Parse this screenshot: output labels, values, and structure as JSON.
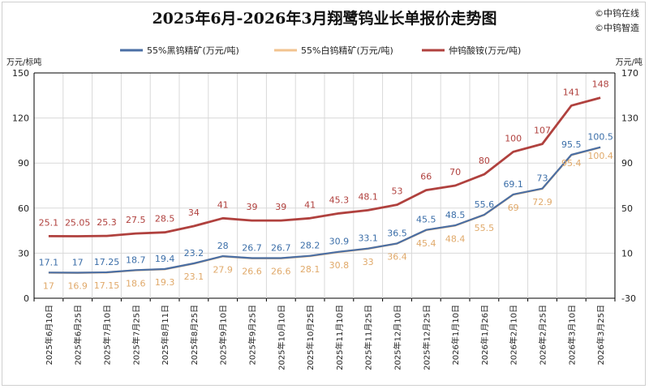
{
  "brand": {
    "line1": "©中钨在线",
    "line2": "©中钨智造"
  },
  "colors": {
    "black_tungsten": "#4a6fa5",
    "white_tungsten": "#f2c38f",
    "apt": "#b0413e",
    "gridline": "#d9d9d9",
    "black_label": "#3b6ea8",
    "white_label": "#e0a96a",
    "apt_label": "#b0413e"
  },
  "chart_data": {
    "type": "line",
    "title": "2025年6月-2026年3月翔鹭钨业长单报价走势图",
    "y_unit_left": "万元/标吨",
    "y_unit_right": "万元/吨",
    "ylim_left": [
      0,
      150
    ],
    "ylim_right": [
      -30,
      170
    ],
    "yticks_left": [
      0,
      30,
      60,
      90,
      120,
      150
    ],
    "yticks_right": [
      -30,
      10,
      50,
      90,
      130,
      170
    ],
    "grid": true,
    "legend_position": "top",
    "categories": [
      "2025年6月10日",
      "2025年6月25日",
      "2025年7月10日",
      "2025年7月25日",
      "2025年8月11日",
      "2025年8月25日",
      "2025年9月10日",
      "2025年9月25日",
      "2025年10月10日",
      "2025年10月25日",
      "2025年11月10日",
      "2025年11月25日",
      "2025年12月10日",
      "2025年12月25日",
      "2026年1月10日",
      "2026年1月26日",
      "2026年2月10日",
      "2026年2月25日",
      "2026年3月10日",
      "2026年3月25日"
    ],
    "series": [
      {
        "name": "55%黑钨精矿(万元/吨)",
        "axis": "left",
        "values": [
          17.1,
          17,
          17.25,
          18.7,
          19.4,
          23.2,
          28,
          26.7,
          26.7,
          28.2,
          30.9,
          33.1,
          36.5,
          45.5,
          48.5,
          55.6,
          69.1,
          73,
          95.5,
          100.5
        ],
        "labels": [
          "17.1",
          "17",
          "17.25",
          "18.7",
          "19.4",
          "23.2",
          "28",
          "26.7",
          "26.7",
          "28.2",
          "30.9",
          "33.1",
          "36.5",
          "45.5",
          "48.5",
          "55.6",
          "69.1",
          "73",
          "95.5",
          "100.5"
        ]
      },
      {
        "name": "55%白钨精矿(万元/吨)",
        "axis": "left",
        "values": [
          17,
          16.9,
          17.15,
          18.6,
          19.3,
          23.1,
          27.9,
          26.6,
          26.6,
          28.1,
          30.8,
          33,
          36.4,
          45.4,
          48.4,
          55.5,
          69,
          72.9,
          95.4,
          100.4
        ],
        "labels": [
          "17",
          "16.9",
          "17.15",
          "18.6",
          "19.3",
          "23.1",
          "27.9",
          "26.6",
          "26.6",
          "28.1",
          "30.8",
          "33",
          "36.4",
          "45.4",
          "48.4",
          "55.5",
          "69",
          "72.9",
          "95.4",
          "100.4"
        ]
      },
      {
        "name": "仲钨酸铵(万元/吨)",
        "axis": "right",
        "values": [
          25.1,
          25.05,
          25.3,
          27.5,
          28.5,
          34,
          41,
          39,
          39,
          41,
          45.3,
          48.1,
          53,
          66,
          70,
          80,
          100,
          107,
          141,
          148
        ],
        "labels": [
          "25.1",
          "25.05",
          "25.3",
          "27.5",
          "28.5",
          "34",
          "41",
          "39",
          "39",
          "41",
          "45.3",
          "48.1",
          "53",
          "66",
          "70",
          "80",
          "100",
          "107",
          "141",
          "148"
        ]
      }
    ]
  }
}
